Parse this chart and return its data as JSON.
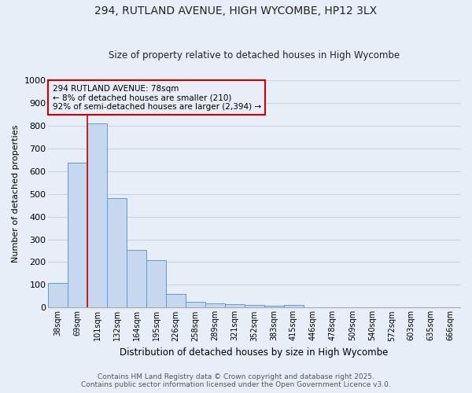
{
  "title1": "294, RUTLAND AVENUE, HIGH WYCOMBE, HP12 3LX",
  "title2": "Size of property relative to detached houses in High Wycombe",
  "xlabel": "Distribution of detached houses by size in High Wycombe",
  "ylabel": "Number of detached properties",
  "categories": [
    "38sqm",
    "69sqm",
    "101sqm",
    "132sqm",
    "164sqm",
    "195sqm",
    "226sqm",
    "258sqm",
    "289sqm",
    "321sqm",
    "352sqm",
    "383sqm",
    "415sqm",
    "446sqm",
    "478sqm",
    "509sqm",
    "540sqm",
    "572sqm",
    "603sqm",
    "635sqm",
    "666sqm"
  ],
  "values": [
    110,
    635,
    810,
    480,
    255,
    210,
    60,
    27,
    20,
    15,
    10,
    7,
    10,
    0,
    0,
    0,
    0,
    0,
    0,
    0,
    0
  ],
  "bar_color": "#c5d8f0",
  "bar_edge_color": "#6699cc",
  "grid_color": "#c8d4e8",
  "bg_color": "#e8eef8",
  "vline_x": 1.5,
  "vline_color": "#cc0000",
  "annotation_text": "294 RUTLAND AVENUE: 78sqm\n← 8% of detached houses are smaller (210)\n92% of semi-detached houses are larger (2,394) →",
  "annotation_box_color": "#cc0000",
  "ylim": [
    0,
    1000
  ],
  "yticks": [
    0,
    100,
    200,
    300,
    400,
    500,
    600,
    700,
    800,
    900,
    1000
  ],
  "footnote1": "Contains HM Land Registry data © Crown copyright and database right 2025.",
  "footnote2": "Contains public sector information licensed under the Open Government Licence v3.0."
}
